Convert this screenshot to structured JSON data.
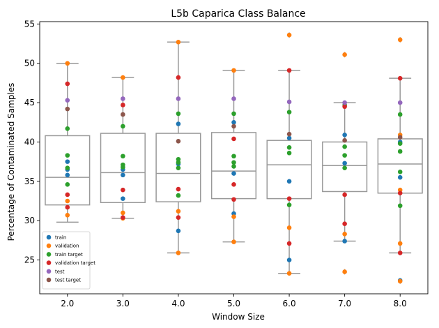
{
  "chart_data": {
    "type": "boxplot-swarm",
    "title": "L5b Caparica Class Balance",
    "xlabel": "Window Size",
    "ylabel": "Percentage of Contaminated Samples",
    "categories": [
      "2.0",
      "3.0",
      "4.0",
      "5.0",
      "6.0",
      "7.0",
      "8.0"
    ],
    "ylim": [
      20.7,
      55.3
    ],
    "yticks": [
      25,
      30,
      35,
      40,
      45,
      50,
      55
    ],
    "grid": false,
    "legend_position": "lower-left",
    "box_color": "#999999",
    "boxes": [
      {
        "category": "2.0",
        "whisker_low": 29.8,
        "q1": 32.0,
        "median": 35.5,
        "q3": 40.8,
        "whisker_high": 50.0,
        "outliers": []
      },
      {
        "category": "3.0",
        "whisker_low": 30.3,
        "q1": 32.3,
        "median": 36.1,
        "q3": 41.1,
        "whisker_high": 48.2,
        "outliers": []
      },
      {
        "category": "4.0",
        "whisker_low": 25.9,
        "q1": 32.4,
        "median": 36.0,
        "q3": 41.1,
        "whisker_high": 52.7,
        "outliers": []
      },
      {
        "category": "5.0",
        "whisker_low": 27.3,
        "q1": 32.8,
        "median": 36.3,
        "q3": 41.2,
        "whisker_high": 49.1,
        "outliers": []
      },
      {
        "category": "6.0",
        "whisker_low": 23.3,
        "q1": 32.8,
        "median": 37.1,
        "q3": 40.2,
        "whisker_high": 49.1,
        "outliers": [
          53.6
        ]
      },
      {
        "category": "7.0",
        "whisker_low": 27.4,
        "q1": 33.7,
        "median": 37.0,
        "q3": 40.0,
        "whisker_high": 45.0,
        "outliers": [
          51.1,
          23.5
        ]
      },
      {
        "category": "8.0",
        "whisker_low": 25.9,
        "q1": 33.5,
        "median": 37.2,
        "q3": 40.4,
        "whisker_high": 48.1,
        "outliers": [
          53.0,
          22.3
        ]
      }
    ],
    "series": [
      {
        "name": "train",
        "color": "#1f77b4",
        "points": {
          "2.0": [
            37.5,
            36.5,
            35.8
          ],
          "3.0": [
            32.8,
            36.5,
            35.8
          ],
          "4.0": [
            42.3,
            28.7,
            37.2
          ],
          "5.0": [
            42.5,
            30.9,
            36.0
          ],
          "6.0": [
            40.5,
            35.0,
            25.0
          ],
          "7.0": [
            40.9,
            37.3,
            27.4
          ],
          "8.0": [
            40.0,
            35.5,
            22.4
          ]
        }
      },
      {
        "name": "validation",
        "color": "#ff7f0e",
        "points": {
          "2.0": [
            50.0,
            32.5,
            30.7
          ],
          "3.0": [
            48.2,
            31.0,
            30.3
          ],
          "4.0": [
            52.7,
            31.2,
            25.9
          ],
          "5.0": [
            49.1,
            30.5,
            27.3
          ],
          "6.0": [
            53.6,
            29.1,
            23.3
          ],
          "7.0": [
            51.1,
            28.3,
            23.5
          ],
          "8.0": [
            53.0,
            33.9,
            22.3,
            27.1,
            40.9
          ]
        }
      },
      {
        "name": "train target",
        "color": "#2ca02c",
        "points": {
          "2.0": [
            41.7,
            38.3,
            36.7,
            34.6
          ],
          "3.0": [
            42.0,
            38.2,
            37.1,
            36.8
          ],
          "4.0": [
            43.6,
            37.8,
            37.4,
            36.7,
            33.2
          ],
          "5.0": [
            43.6,
            38.2,
            37.4,
            36.9
          ],
          "6.0": [
            43.8,
            39.3,
            38.6,
            32.0
          ],
          "7.0": [
            44.7,
            39.4,
            38.3,
            36.7
          ],
          "8.0": [
            43.5,
            39.8,
            38.8,
            36.2,
            31.9
          ]
        }
      },
      {
        "name": "validation target",
        "color": "#d62728",
        "points": {
          "2.0": [
            47.4,
            33.3,
            31.7
          ],
          "3.0": [
            44.7,
            33.9,
            30.4
          ],
          "4.0": [
            48.2,
            34.0,
            30.4
          ],
          "5.0": [
            40.4,
            34.6,
            32.7
          ],
          "6.0": [
            49.1,
            32.8,
            27.1
          ],
          "7.0": [
            44.5,
            33.3,
            29.6
          ],
          "8.0": [
            48.1,
            33.5,
            25.9
          ]
        }
      },
      {
        "name": "test",
        "color": "#9467bd",
        "points": {
          "2.0": [
            45.3
          ],
          "3.0": [
            45.5
          ],
          "4.0": [
            45.5
          ],
          "5.0": [
            45.5
          ],
          "6.0": [
            45.1
          ],
          "7.0": [
            45.0
          ],
          "8.0": [
            45.0
          ]
        }
      },
      {
        "name": "test target",
        "color": "#8c564b",
        "points": {
          "2.0": [
            44.2
          ],
          "3.0": [
            43.5
          ],
          "4.0": [
            40.1
          ],
          "5.0": [
            42.0
          ],
          "6.0": [
            41.0
          ],
          "7.0": [
            40.2
          ],
          "8.0": [
            40.6
          ]
        }
      }
    ]
  }
}
